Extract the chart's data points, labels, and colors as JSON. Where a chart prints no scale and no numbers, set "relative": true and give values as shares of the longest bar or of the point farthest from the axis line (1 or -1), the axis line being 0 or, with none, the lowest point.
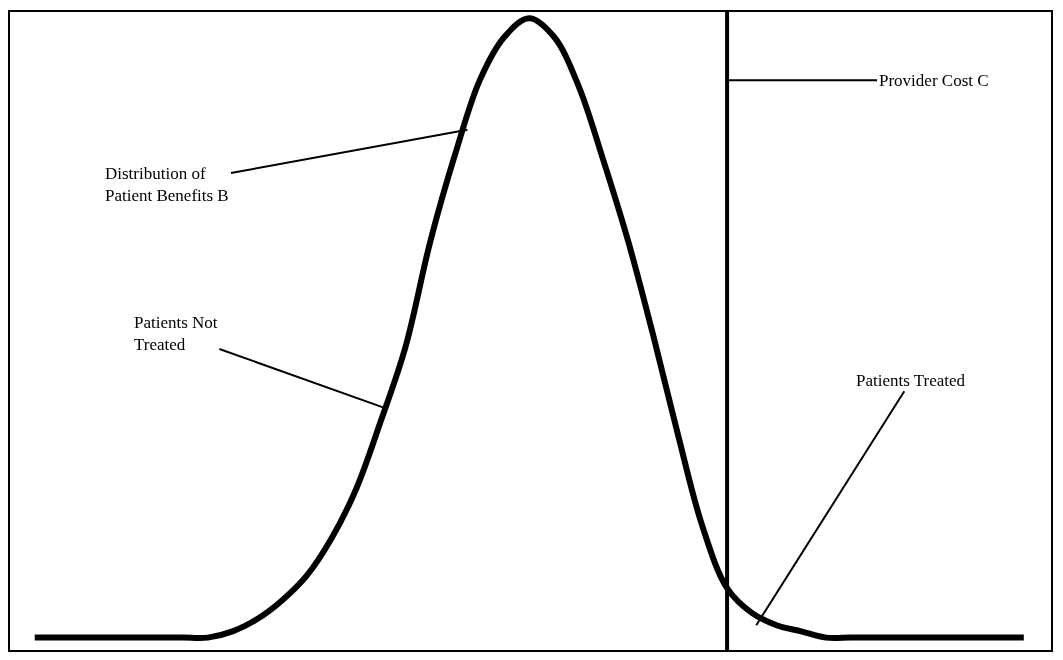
{
  "chart_data": {
    "type": "line",
    "relative": true,
    "categories": [
      null,
      null,
      null,
      null,
      null,
      null,
      null,
      null,
      null,
      null,
      null,
      null,
      null,
      null,
      null,
      null,
      null,
      null,
      null,
      null,
      null,
      null,
      null,
      null,
      null,
      null,
      null,
      null,
      null,
      null,
      null,
      null,
      null,
      null,
      null,
      null,
      null,
      null,
      null,
      null,
      null
    ],
    "series": [
      {
        "color": "#000000",
        "values": [
          0,
          0,
          0,
          0,
          0,
          0,
          0,
          0,
          0.01,
          0.03,
          0.06,
          0.1,
          0.16,
          0.24,
          0.35,
          0.47,
          0.64,
          0.78,
          0.9,
          0.97,
          1.0,
          0.97,
          0.89,
          0.77,
          0.64,
          0.49,
          0.33,
          0.18,
          0.08,
          0.04,
          0.02,
          0.01,
          0,
          0,
          0,
          0,
          0,
          0,
          0,
          0,
          0
        ]
      }
    ],
    "annotations": [
      "Distribution of\nPatient Benefits B",
      "Patients Not\nTreated",
      "Patients Treated",
      "Provider Cost C"
    ],
    "marker": "none",
    "line_style": "solid"
  }
}
